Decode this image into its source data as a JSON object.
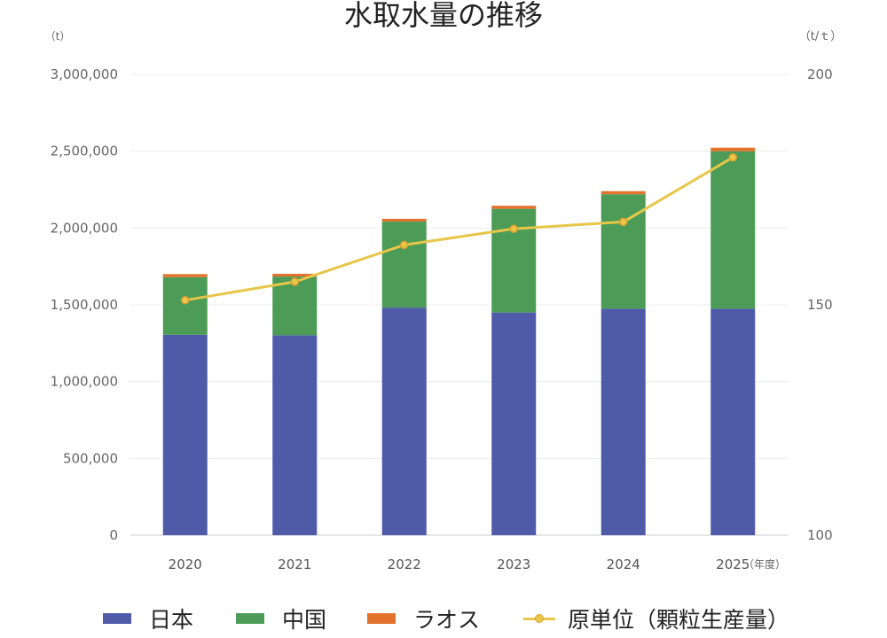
{
  "chart_data": {
    "type": "bar",
    "title": "水取水量の推移",
    "y_left_unit": "（t）",
    "y_right_unit": "（t/ｔ）",
    "x_unit": "（年度）",
    "categories": [
      "2020",
      "2021",
      "2022",
      "2023",
      "2024",
      "2025"
    ],
    "ylim": [
      0,
      3000000
    ],
    "y_ticks": [
      "0",
      "500,000",
      "1,000,000",
      "1,500,000",
      "2,000,000",
      "2,500,000",
      "3,000,000"
    ],
    "y2lim": [
      100,
      200
    ],
    "y2_ticks": [
      "100",
      "150",
      "200"
    ],
    "series": [
      {
        "name": "日本",
        "type": "bar",
        "color": "#4f5aa8",
        "values": [
          1305000,
          1302000,
          1482000,
          1450000,
          1475000,
          1475000
        ]
      },
      {
        "name": "中国",
        "type": "bar",
        "color": "#4c9c57",
        "values": [
          375000,
          382000,
          560000,
          675000,
          745000,
          1025000
        ]
      },
      {
        "name": "ラオス",
        "type": "bar",
        "color": "#e2722c",
        "values": [
          20000,
          18000,
          18000,
          20000,
          20000,
          23000
        ]
      },
      {
        "name": "原単位（顆粒生産量）",
        "type": "line",
        "axis": "right",
        "color": "#e8c64a",
        "values": [
          151,
          155,
          163,
          166.5,
          168,
          182
        ]
      }
    ],
    "grid": true,
    "legend": "bottom"
  }
}
